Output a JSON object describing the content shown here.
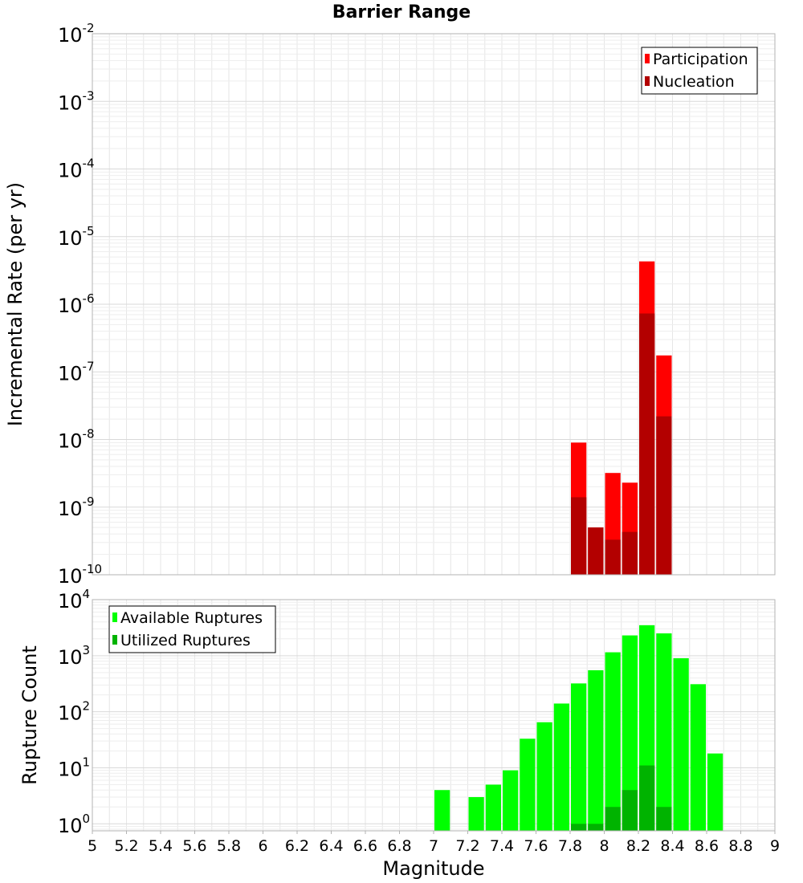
{
  "chart_data": [
    {
      "type": "bar",
      "title": "Barrier Range",
      "xlabel": "",
      "ylabel": "Incremental Rate (per yr)",
      "yscale": "log",
      "ylim": [
        1e-10,
        0.01
      ],
      "xlim": [
        5,
        9
      ],
      "bin_width": 0.1,
      "grid": true,
      "legend_position": "top-right",
      "y_tick_exponents": [
        "-10",
        "-9",
        "-8",
        "-7",
        "-6",
        "-5",
        "-4",
        "-3",
        "-2"
      ],
      "x": [
        7.85,
        7.95,
        8.05,
        8.15,
        8.25,
        8.35
      ],
      "series": [
        {
          "name": "Participation",
          "color": "#ff0000",
          "values": [
            9e-09,
            5e-10,
            3.2e-09,
            2.3e-09,
            4.3e-06,
            1.75e-07
          ]
        },
        {
          "name": "Nucleation",
          "color": "#b30000",
          "values": [
            1.4e-09,
            5e-10,
            3.3e-10,
            4.3e-10,
            7.3e-07,
            2.2e-08
          ]
        }
      ]
    },
    {
      "type": "bar",
      "title": "",
      "xlabel": "Magnitude",
      "ylabel": "Rupture Count",
      "yscale": "log",
      "ylim": [
        0.75,
        10000
      ],
      "xlim": [
        5,
        9
      ],
      "bin_width": 0.1,
      "grid": true,
      "legend_position": "top-left",
      "y_tick_exponents": [
        "0",
        "1",
        "2",
        "3",
        "4"
      ],
      "x_ticks": [
        "5",
        "5.2",
        "5.4",
        "5.6",
        "5.8",
        "6",
        "6.2",
        "6.4",
        "6.6",
        "6.8",
        "7",
        "7.2",
        "7.4",
        "7.6",
        "7.8",
        "8",
        "8.2",
        "8.4",
        "8.6",
        "8.8",
        "9"
      ],
      "x": [
        7.05,
        7.25,
        7.35,
        7.45,
        7.55,
        7.65,
        7.75,
        7.85,
        7.95,
        8.05,
        8.15,
        8.25,
        8.35,
        8.45,
        8.55,
        8.65
      ],
      "series": [
        {
          "name": "Available Ruptures",
          "color": "#00ff00",
          "values": [
            4,
            3,
            5,
            9,
            33,
            65,
            140,
            320,
            550,
            1150,
            2300,
            3500,
            2500,
            900,
            310,
            18
          ]
        },
        {
          "name": "Utilized Ruptures",
          "color": "#00b300",
          "values": [
            0,
            0,
            0,
            0,
            0,
            0,
            0,
            1,
            1,
            2,
            4,
            11,
            2,
            0,
            0,
            0
          ]
        }
      ]
    }
  ]
}
